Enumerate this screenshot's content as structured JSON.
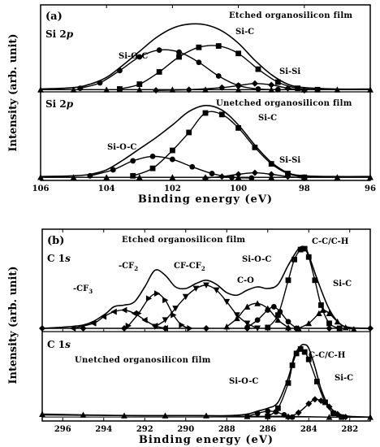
{
  "chart_data": [
    {
      "type": "line",
      "panel_label": "(a)",
      "xlabel": "Binding energy (eV)",
      "ylabel": "Intensity (arb. unit)",
      "xlim": [
        106,
        96
      ],
      "x_reversed": true,
      "xticks": [
        106,
        104,
        102,
        100,
        98,
        96
      ],
      "grid": false,
      "subpanels": [
        {
          "core": "Si 2p",
          "film": "Etched organosilicon film",
          "envelope": {
            "x": [
              106,
              105,
              104.5,
              104,
              103.5,
              103,
              102.5,
              102,
              101.5,
              101,
              100.5,
              100,
              99.5,
              99,
              98.5,
              98,
              97,
              96
            ],
            "y": [
              0.03,
              0.05,
              0.1,
              0.2,
              0.38,
              0.58,
              0.78,
              0.92,
              0.98,
              0.97,
              0.88,
              0.7,
              0.45,
              0.24,
              0.1,
              0.05,
              0.03,
              0.03
            ]
          },
          "components": [
            {
              "name": "Si-O-C",
              "marker": "circle",
              "x": [
                104.8,
                104.2,
                103.6,
                103.0,
                102.4,
                101.8,
                101.2,
                100.6,
                100.0,
                99.4,
                98.8
              ],
              "y": [
                0.04,
                0.12,
                0.3,
                0.5,
                0.6,
                0.57,
                0.42,
                0.22,
                0.08,
                0.03,
                0.02
              ]
            },
            {
              "name": "Si-C",
              "marker": "square",
              "x": [
                103.6,
                103.0,
                102.4,
                101.8,
                101.2,
                100.6,
                100.0,
                99.4,
                98.8,
                98.2,
                97.6
              ],
              "y": [
                0.03,
                0.1,
                0.28,
                0.5,
                0.64,
                0.66,
                0.55,
                0.32,
                0.13,
                0.04,
                0.02
              ]
            },
            {
              "name": "Si-Si",
              "marker": "diamond",
              "x": [
                102.5,
                101.5,
                100.5,
                100.0,
                99.5,
                99.0,
                98.5,
                98.0
              ],
              "y": [
                0.01,
                0.02,
                0.05,
                0.08,
                0.11,
                0.09,
                0.04,
                0.01
              ]
            },
            {
              "name": "",
              "marker": "triangle",
              "x": [
                106,
                105,
                104,
                103,
                102,
                101,
                100,
                99,
                98,
                97,
                96
              ],
              "y": [
                0.02,
                0.02,
                0.02,
                0.02,
                0.02,
                0.02,
                0.02,
                0.02,
                0.02,
                0.02,
                0.02
              ]
            }
          ]
        },
        {
          "core": "Si 2p",
          "film": "Unetched organosilicon film",
          "envelope": {
            "x": [
              106,
              105,
              104.5,
              104,
              103.5,
              103,
              102.5,
              102,
              101.5,
              101,
              100.5,
              100,
              99.5,
              99,
              98.5,
              98,
              97,
              96
            ],
            "y": [
              0.03,
              0.04,
              0.06,
              0.12,
              0.25,
              0.4,
              0.55,
              0.72,
              0.9,
              0.98,
              0.92,
              0.72,
              0.45,
              0.22,
              0.08,
              0.04,
              0.03,
              0.03
            ]
          },
          "components": [
            {
              "name": "Si-O-C",
              "marker": "circle",
              "x": [
                104.5,
                103.8,
                103.2,
                102.6,
                102.0,
                101.4,
                100.8,
                100.2,
                99.6
              ],
              "y": [
                0.04,
                0.12,
                0.24,
                0.3,
                0.26,
                0.16,
                0.07,
                0.02,
                0.01
              ]
            },
            {
              "name": "Si-C",
              "marker": "square",
              "x": [
                103.2,
                102.6,
                102.0,
                101.5,
                101.0,
                100.5,
                100.0,
                99.5,
                99.0,
                98.5,
                98.0
              ],
              "y": [
                0.04,
                0.14,
                0.38,
                0.62,
                0.88,
                0.86,
                0.68,
                0.42,
                0.2,
                0.07,
                0.02
              ]
            },
            {
              "name": "Si-Si",
              "marker": "diamond",
              "x": [
                101.0,
                100.5,
                100.0,
                99.5,
                99.0,
                98.5,
                98.0
              ],
              "y": [
                0.01,
                0.03,
                0.06,
                0.08,
                0.06,
                0.03,
                0.01
              ]
            },
            {
              "name": "",
              "marker": "triangle",
              "x": [
                106,
                105,
                104,
                103,
                102,
                101,
                100,
                99,
                98,
                97,
                96
              ],
              "y": [
                0.02,
                0.02,
                0.02,
                0.02,
                0.02,
                0.02,
                0.02,
                0.02,
                0.02,
                0.02,
                0.02
              ]
            }
          ]
        }
      ]
    },
    {
      "type": "line",
      "panel_label": "(b)",
      "xlabel": "Binding energy (eV)",
      "ylabel": "Intensity (arb. unit)",
      "xlim": [
        297,
        281
      ],
      "x_reversed": true,
      "xticks": [
        296,
        294,
        292,
        290,
        288,
        286,
        284,
        282
      ],
      "grid": false,
      "subpanels": [
        {
          "core": "C 1s",
          "film": "Etched organosilicon film",
          "envelope": {
            "x": [
              297,
              295,
              294,
              293.5,
              293,
              292.5,
              292,
              291.5,
              291,
              290.5,
              290,
              289.5,
              289,
              288.5,
              288,
              287.5,
              287,
              286.5,
              286,
              285.5,
              285,
              284.5,
              284.2,
              284,
              283.5,
              283,
              282.5,
              282,
              281
            ],
            "y": [
              0.02,
              0.06,
              0.18,
              0.28,
              0.3,
              0.34,
              0.52,
              0.72,
              0.66,
              0.52,
              0.5,
              0.56,
              0.6,
              0.55,
              0.45,
              0.42,
              0.48,
              0.52,
              0.5,
              0.55,
              0.78,
              0.98,
              1.0,
              0.9,
              0.55,
              0.25,
              0.08,
              0.03,
              0.02
            ]
          },
          "components": [
            {
              "name": "-CF3",
              "marker": "triangle-left",
              "x": [
                295.5,
                294.5,
                294.0,
                293.5,
                293.0,
                292.5,
                292.0,
                291.5,
                291.0
              ],
              "y": [
                0.02,
                0.08,
                0.16,
                0.22,
                0.24,
                0.2,
                0.12,
                0.05,
                0.02
              ]
            },
            {
              "name": "-CF2",
              "marker": "triangle-right",
              "x": [
                292.8,
                292.3,
                291.8,
                291.4,
                291.0,
                290.6,
                290.2,
                289.8
              ],
              "y": [
                0.05,
                0.2,
                0.38,
                0.44,
                0.36,
                0.18,
                0.06,
                0.02
              ]
            },
            {
              "name": "CF-CF2",
              "marker": "triangle-down",
              "x": [
                291.5,
                291.0,
                290.5,
                290.0,
                289.5,
                289.0,
                288.5,
                288.0,
                287.5,
                287.0,
                286.5
              ],
              "y": [
                0.04,
                0.12,
                0.26,
                0.4,
                0.5,
                0.54,
                0.48,
                0.34,
                0.18,
                0.08,
                0.02
              ]
            },
            {
              "name": "C-O",
              "marker": "triangle",
              "x": [
                288.0,
                287.5,
                287.0,
                286.5,
                286.0,
                285.5,
                285.0
              ],
              "y": [
                0.04,
                0.14,
                0.28,
                0.32,
                0.26,
                0.12,
                0.03
              ]
            },
            {
              "name": "Si-O-C",
              "marker": "circle",
              "x": [
                287.0,
                286.5,
                286.0,
                285.7,
                285.4,
                285.0,
                284.6
              ],
              "y": [
                0.03,
                0.12,
                0.24,
                0.28,
                0.22,
                0.1,
                0.02
              ]
            },
            {
              "name": "C-C/C-H",
              "marker": "square",
              "x": [
                286.0,
                285.5,
                285.0,
                284.7,
                284.4,
                284.2,
                284.0,
                283.7,
                283.4,
                283.0,
                282.5
              ],
              "y": [
                0.03,
                0.18,
                0.6,
                0.85,
                0.97,
                0.98,
                0.88,
                0.6,
                0.3,
                0.08,
                0.02
              ]
            },
            {
              "name": "Si-C",
              "marker": "triangle",
              "x": [
                284.5,
                284.0,
                283.5,
                283.3,
                283.0,
                282.6,
                282.2,
                281.8
              ],
              "y": [
                0.02,
                0.08,
                0.2,
                0.24,
                0.2,
                0.1,
                0.03,
                0.01
              ]
            },
            {
              "name": "",
              "marker": "diamond",
              "x": [
                297,
                295,
                293,
                291,
                289,
                287,
                285,
                283,
                281
              ],
              "y": [
                0.02,
                0.02,
                0.02,
                0.02,
                0.02,
                0.02,
                0.02,
                0.02,
                0.02
              ]
            }
          ]
        },
        {
          "core": "C 1s",
          "film": "Unetched organosilicon film",
          "envelope": {
            "x": [
              297,
              292,
              290,
              288,
              287,
              286.5,
              286,
              285.5,
              285,
              284.7,
              284.4,
              284.2,
              284,
              283.7,
              283.4,
              283,
              282.5,
              282,
              281
            ],
            "y": [
              0.05,
              0.04,
              0.04,
              0.04,
              0.06,
              0.1,
              0.14,
              0.22,
              0.55,
              0.85,
              0.98,
              1.0,
              0.95,
              0.7,
              0.4,
              0.16,
              0.06,
              0.03,
              0.02
            ]
          },
          "components": [
            {
              "name": "Si-O-C",
              "marker": "circle",
              "x": [
                287.0,
                286.5,
                286.0,
                285.6,
                285.2,
                284.8
              ],
              "y": [
                0.03,
                0.07,
                0.1,
                0.09,
                0.05,
                0.02
              ]
            },
            {
              "name": "C-C/C-H",
              "marker": "square",
              "x": [
                286.0,
                285.5,
                285.0,
                284.8,
                284.6,
                284.4,
                284.2,
                284.0,
                283.6,
                283.2,
                282.8,
                282.4
              ],
              "y": [
                0.03,
                0.14,
                0.48,
                0.72,
                0.88,
                0.94,
                0.9,
                0.8,
                0.5,
                0.22,
                0.07,
                0.02
              ]
            },
            {
              "name": "Si-C",
              "marker": "diamond",
              "x": [
                285.0,
                284.5,
                284.0,
                283.7,
                283.4,
                283.0,
                282.6,
                282.2
              ],
              "y": [
                0.02,
                0.08,
                0.2,
                0.26,
                0.24,
                0.16,
                0.06,
                0.02
              ]
            },
            {
              "name": "",
              "marker": "triangle",
              "x": [
                297,
                295,
                293,
                291,
                289,
                287,
                285,
                283,
                281
              ],
              "y": [
                0.06,
                0.05,
                0.04,
                0.04,
                0.04,
                0.03,
                0.03,
                0.02,
                0.02
              ]
            }
          ]
        }
      ]
    }
  ],
  "labels": {
    "panel_a": "(a)",
    "panel_b": "(b)",
    "si2p_core": "Si 2",
    "c1s_core": "C 1",
    "orbital_p": "p",
    "orbital_s": "s",
    "etched_film": "Etched organosilicon film",
    "unetched_film": "Unetched organosilicon film",
    "si_o_c": "Si-O-C",
    "si_c": "Si-C",
    "si_si": "Si-Si",
    "c_c_c_h": "C-C/C-H",
    "c_o": "C-O",
    "cf3_main": "-CF",
    "cf3_sub": "3",
    "cf2_main": "-CF",
    "cf2_sub": "2",
    "cfcf2_main": "CF-CF",
    "cfcf2_sub": "2",
    "xlabel": "Binding energy (eV)",
    "ylabel": "Intensity (arb. unit)"
  }
}
